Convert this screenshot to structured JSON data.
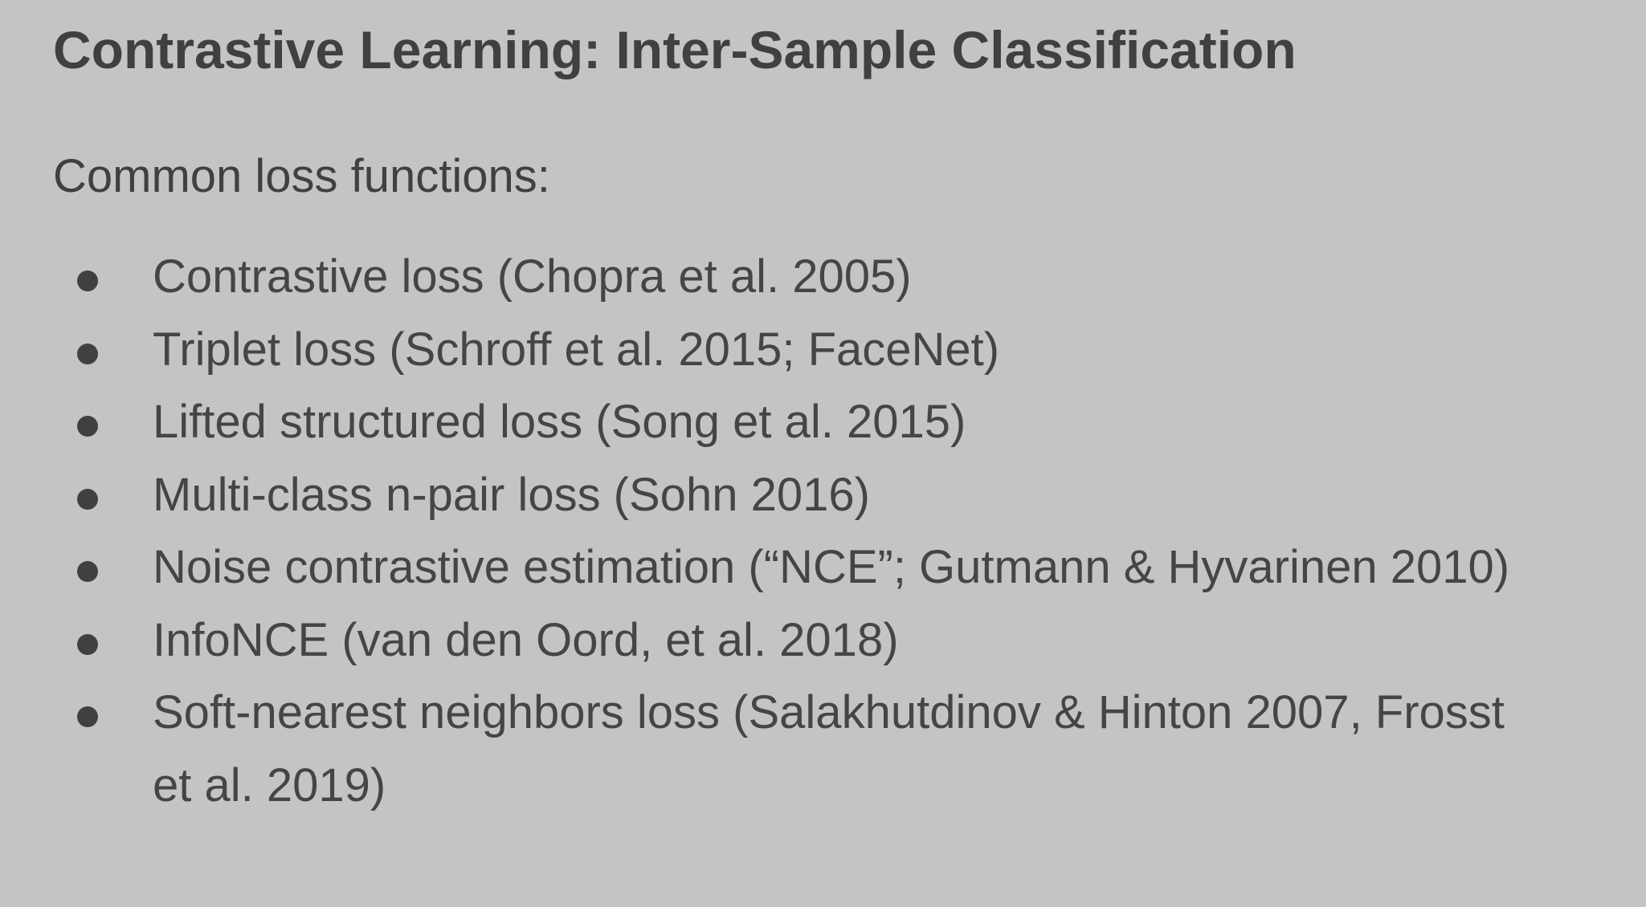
{
  "slide": {
    "title": "Contrastive Learning: Inter-Sample Classification",
    "subtitle": "Common loss functions:",
    "items": [
      {
        "text": "Contrastive loss (Chopra et al. 2005)"
      },
      {
        "text": "Triplet loss (Schroff et al. 2015; FaceNet)"
      },
      {
        "text": "Lifted structured loss (Song et al. 2015)"
      },
      {
        "text": "Multi-class n-pair loss (Sohn 2016)"
      },
      {
        "text": "Noise contrastive estimation (“NCE”; Gutmann & Hyvarinen 2010)"
      },
      {
        "text": "InfoNCE (van den Oord, et al. 2018)"
      },
      {
        "text": "Soft-nearest neighbors loss (Salakhutdinov & Hinton 2007, Frosst et al. 2019)"
      }
    ],
    "colors": {
      "background": "#c4c4c4",
      "text": "#404040"
    }
  }
}
